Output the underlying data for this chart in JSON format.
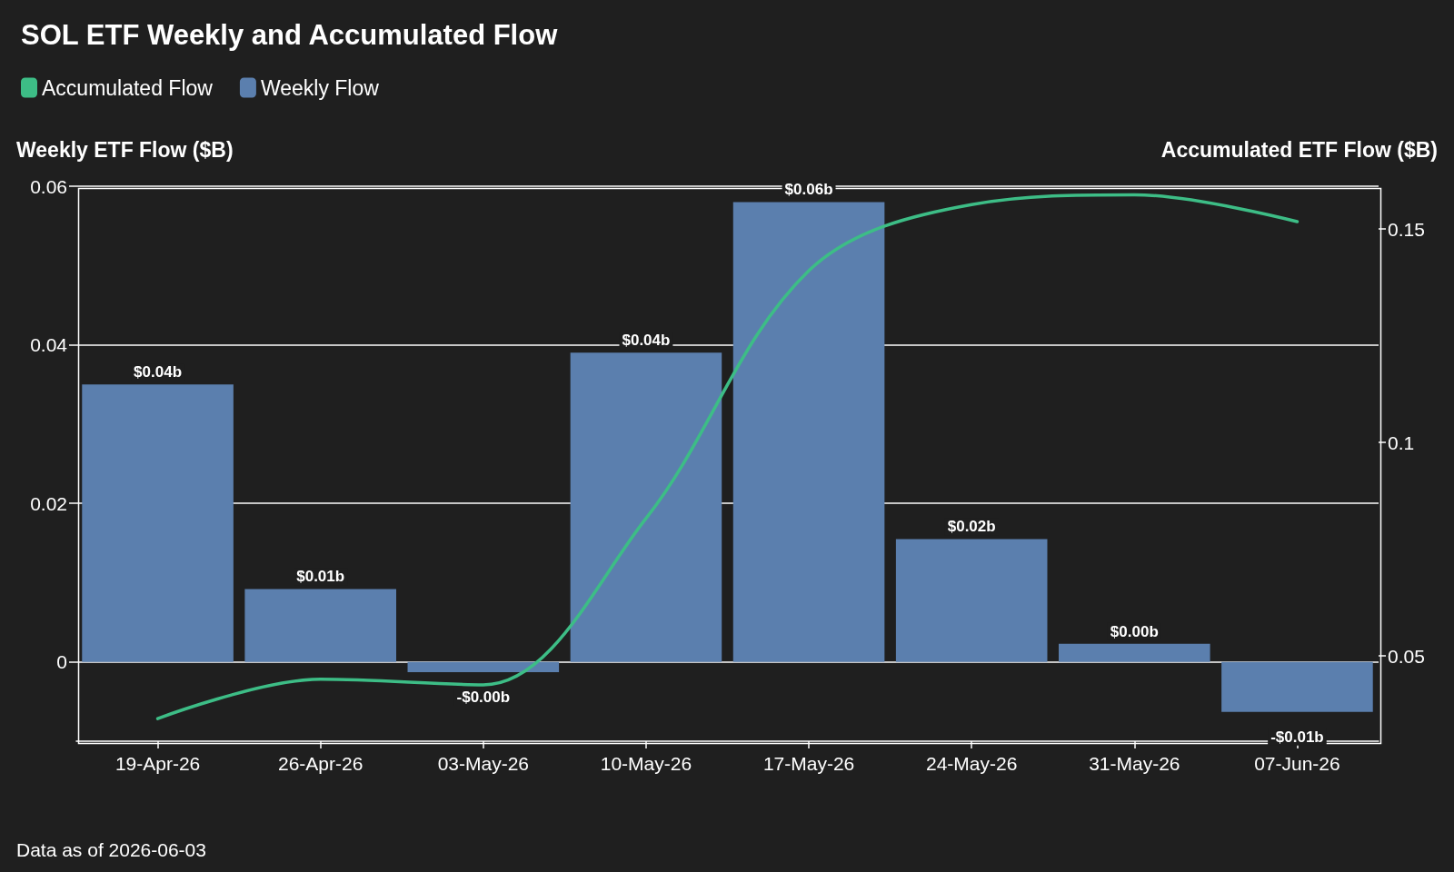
{
  "chart_data": {
    "type": "bar",
    "title": "SOL ETF Weekly and Accumulated Flow",
    "ylabel": "Weekly ETF Flow ($B)",
    "y2label": "Accumulated ETF Flow ($B)",
    "categories": [
      "19-Apr-26",
      "26-Apr-26",
      "03-May-26",
      "10-May-26",
      "17-May-26",
      "24-May-26",
      "31-May-26",
      "07-Jun-26"
    ],
    "series": [
      {
        "name": "Accumulated Flow",
        "type": "line",
        "axis": "y2",
        "color": "#3dbd86",
        "marker": "none",
        "values": [
          0.0353,
          0.0445,
          0.0432,
          0.0822,
          0.1402,
          0.1557,
          0.158,
          0.1517
        ]
      },
      {
        "name": "Weekly Flow",
        "color": "#5b7fae",
        "values": [
          0.035,
          0.0092,
          -0.0013,
          0.039,
          0.058,
          0.0155,
          0.0023,
          -0.0063
        ],
        "value_labels": [
          "$0.04b",
          "$0.01b",
          "-$0.00b",
          "$0.04b",
          "$0.06b",
          "$0.02b",
          "$0.00b",
          "-$0.01b"
        ]
      }
    ],
    "ylim": [
      -0.01,
      0.06
    ],
    "yticks": [
      0,
      0.02,
      0.04,
      0.06
    ],
    "y2lim": [
      0.03,
      0.16
    ],
    "y2ticks": [
      0.05,
      0.1,
      0.15
    ],
    "grid": "y",
    "legend": "top left",
    "annotations": [
      "Data as of 2026-06-03"
    ]
  }
}
